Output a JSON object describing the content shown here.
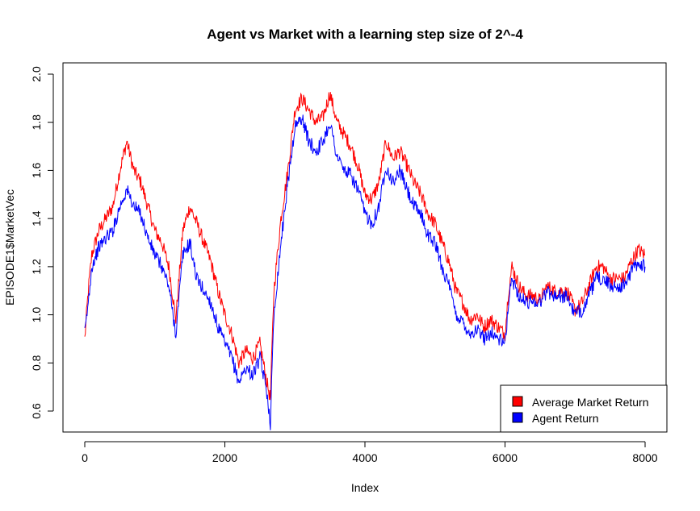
{
  "chart_data": {
    "type": "line",
    "title": "Agent vs Market with a learning step size of 2^-4",
    "xlabel": "Index",
    "ylabel": "EPISODE1$MarketVec",
    "xlim": [
      0,
      8000
    ],
    "ylim": [
      0.53,
      2.0
    ],
    "x_ticks": [
      "0",
      "2000",
      "4000",
      "6000",
      "8000"
    ],
    "y_ticks": [
      "0.6",
      "0.8",
      "1.0",
      "1.2",
      "1.4",
      "1.6",
      "1.8",
      "2.0"
    ],
    "grid": false,
    "legend_position": "bottom-right",
    "series": [
      {
        "name": "Average Market Return",
        "color": "#ff0000",
        "x": [
          0,
          50,
          100,
          200,
          300,
          400,
          500,
          600,
          700,
          800,
          900,
          1000,
          1100,
          1200,
          1300,
          1400,
          1500,
          1600,
          1700,
          1800,
          1900,
          2000,
          2100,
          2200,
          2300,
          2400,
          2500,
          2600,
          2650,
          2700,
          2800,
          2900,
          3000,
          3100,
          3200,
          3300,
          3400,
          3500,
          3600,
          3700,
          3800,
          3900,
          4000,
          4100,
          4200,
          4300,
          4400,
          4500,
          4600,
          4700,
          4800,
          4900,
          5000,
          5100,
          5200,
          5300,
          5400,
          5500,
          5600,
          5700,
          5800,
          5900,
          6000,
          6050,
          6100,
          6200,
          6300,
          6400,
          6500,
          6600,
          6700,
          6800,
          6900,
          7000,
          7100,
          7200,
          7300,
          7400,
          7500,
          7600,
          7700,
          7800,
          7900,
          8000
        ],
        "values": [
          0.9,
          1.1,
          1.25,
          1.35,
          1.4,
          1.45,
          1.6,
          1.72,
          1.6,
          1.55,
          1.45,
          1.35,
          1.3,
          1.2,
          0.98,
          1.35,
          1.45,
          1.38,
          1.3,
          1.22,
          1.1,
          1.0,
          0.92,
          0.8,
          0.85,
          0.82,
          0.88,
          0.72,
          0.65,
          1.1,
          1.4,
          1.6,
          1.85,
          1.9,
          1.85,
          1.8,
          1.82,
          1.92,
          1.8,
          1.75,
          1.7,
          1.62,
          1.5,
          1.48,
          1.55,
          1.72,
          1.65,
          1.68,
          1.62,
          1.55,
          1.5,
          1.42,
          1.38,
          1.3,
          1.22,
          1.1,
          1.05,
          0.98,
          1.0,
          0.95,
          0.98,
          0.95,
          0.92,
          1.1,
          1.2,
          1.12,
          1.08,
          1.08,
          1.06,
          1.12,
          1.1,
          1.1,
          1.09,
          1.02,
          1.05,
          1.12,
          1.2,
          1.2,
          1.15,
          1.15,
          1.15,
          1.22,
          1.27,
          1.25
        ]
      },
      {
        "name": "Agent Return",
        "color": "#0000ff",
        "x": [
          0,
          50,
          100,
          200,
          300,
          400,
          500,
          600,
          700,
          800,
          900,
          1000,
          1100,
          1200,
          1300,
          1400,
          1500,
          1600,
          1700,
          1800,
          1900,
          2000,
          2100,
          2200,
          2300,
          2400,
          2500,
          2600,
          2650,
          2700,
          2800,
          2900,
          3000,
          3100,
          3200,
          3300,
          3400,
          3500,
          3600,
          3700,
          3800,
          3900,
          4000,
          4100,
          4200,
          4300,
          4400,
          4500,
          4600,
          4700,
          4800,
          4900,
          5000,
          5100,
          5200,
          5300,
          5400,
          5500,
          5600,
          5700,
          5800,
          5900,
          6000,
          6050,
          6100,
          6200,
          6300,
          6400,
          6500,
          6600,
          6700,
          6800,
          6900,
          7000,
          7100,
          7200,
          7300,
          7400,
          7500,
          7600,
          7700,
          7800,
          7900,
          8000
        ],
        "values": [
          0.92,
          1.05,
          1.2,
          1.28,
          1.32,
          1.35,
          1.45,
          1.52,
          1.45,
          1.42,
          1.32,
          1.25,
          1.2,
          1.12,
          0.92,
          1.25,
          1.3,
          1.15,
          1.1,
          1.05,
          0.95,
          0.88,
          0.82,
          0.72,
          0.78,
          0.75,
          0.82,
          0.68,
          0.55,
          1.0,
          1.3,
          1.55,
          1.78,
          1.82,
          1.72,
          1.68,
          1.72,
          1.8,
          1.66,
          1.6,
          1.58,
          1.52,
          1.42,
          1.38,
          1.45,
          1.62,
          1.55,
          1.6,
          1.52,
          1.45,
          1.42,
          1.33,
          1.3,
          1.2,
          1.12,
          1.0,
          0.97,
          0.92,
          0.94,
          0.9,
          0.93,
          0.9,
          0.88,
          1.05,
          1.15,
          1.08,
          1.05,
          1.06,
          1.05,
          1.1,
          1.08,
          1.08,
          1.07,
          1.0,
          1.02,
          1.08,
          1.15,
          1.15,
          1.12,
          1.12,
          1.12,
          1.18,
          1.22,
          1.2
        ]
      }
    ]
  }
}
